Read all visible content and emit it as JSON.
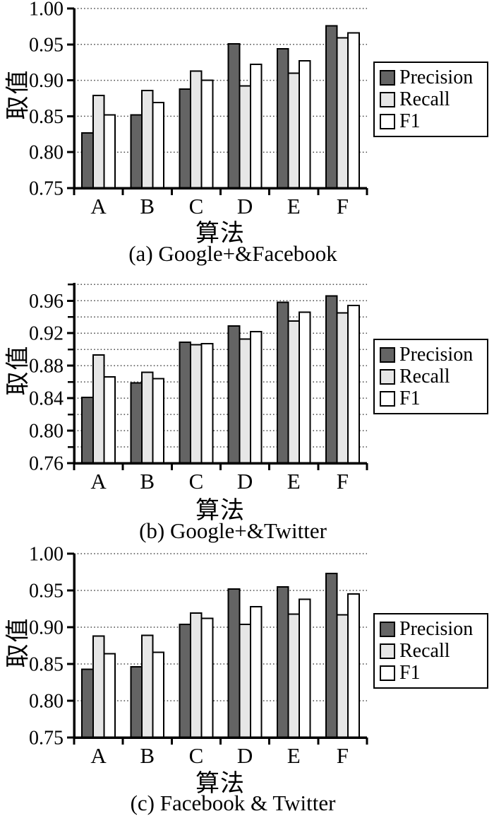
{
  "figure": {
    "background": "#ffffff",
    "series_colors": {
      "Precision": "#646464",
      "Recall": "#e6e6e6",
      "F1": "#ffffff"
    },
    "bar_border_color": "#000000",
    "gridline_color": "#4d4d4d",
    "axis_color": "#000000"
  },
  "chart_data": [
    {
      "id": "a",
      "type": "bar",
      "caption": "(a) Google+&Facebook",
      "xlabel": "算法",
      "ylabel": "取值",
      "categories": [
        "A",
        "B",
        "C",
        "D",
        "E",
        "F"
      ],
      "series": [
        {
          "name": "Precision",
          "values": [
            0.827,
            0.852,
            0.888,
            0.951,
            0.944,
            0.976
          ]
        },
        {
          "name": "Recall",
          "values": [
            0.879,
            0.886,
            0.913,
            0.892,
            0.91,
            0.959
          ]
        },
        {
          "name": "F1",
          "values": [
            0.852,
            0.869,
            0.9,
            0.922,
            0.927,
            0.966
          ]
        }
      ],
      "ylim": [
        0.75,
        1.0
      ],
      "yticks": [
        "0.75",
        "0.80",
        "0.85",
        "0.90",
        "0.95",
        "1.00"
      ],
      "gridlines": [
        0.8,
        0.85,
        0.9,
        0.95,
        1.0
      ],
      "minor_ticks": [],
      "grid": "dotted-horizontal",
      "legend": [
        "Precision",
        "Recall",
        "F1"
      ],
      "legend_position": "right"
    },
    {
      "id": "b",
      "type": "bar",
      "caption": "(b) Google+&Twitter",
      "xlabel": "算法",
      "ylabel": "取值",
      "categories": [
        "A",
        "B",
        "C",
        "D",
        "E",
        "F"
      ],
      "series": [
        {
          "name": "Precision",
          "values": [
            0.841,
            0.859,
            0.909,
            0.929,
            0.958,
            0.966
          ]
        },
        {
          "name": "Recall",
          "values": [
            0.893,
            0.872,
            0.906,
            0.913,
            0.935,
            0.945
          ]
        },
        {
          "name": "F1",
          "values": [
            0.866,
            0.864,
            0.907,
            0.922,
            0.946,
            0.954
          ]
        }
      ],
      "ylim": [
        0.76,
        0.982
      ],
      "yticks": [
        "0.76",
        "0.80",
        "0.84",
        "0.88",
        "0.92",
        "0.96"
      ],
      "gridlines": [
        0.78,
        0.8,
        0.82,
        0.84,
        0.86,
        0.88,
        0.9,
        0.92,
        0.94,
        0.96,
        0.98
      ],
      "minor_ticks": [
        0.78,
        0.82,
        0.86,
        0.9,
        0.94,
        0.98
      ],
      "grid": "dotted-horizontal",
      "legend": [
        "Precision",
        "Recall",
        "F1"
      ],
      "legend_position": "right"
    },
    {
      "id": "c",
      "type": "bar",
      "caption": "(c) Facebook & Twitter",
      "xlabel": "算法",
      "ylabel": "取值",
      "categories": [
        "A",
        "B",
        "C",
        "D",
        "E",
        "F"
      ],
      "series": [
        {
          "name": "Precision",
          "values": [
            0.843,
            0.846,
            0.904,
            0.952,
            0.955,
            0.973
          ]
        },
        {
          "name": "Recall",
          "values": [
            0.888,
            0.889,
            0.919,
            0.904,
            0.918,
            0.917
          ]
        },
        {
          "name": "F1",
          "values": [
            0.864,
            0.866,
            0.912,
            0.928,
            0.938,
            0.945
          ]
        }
      ],
      "ylim": [
        0.75,
        1.0
      ],
      "yticks": [
        "0.75",
        "0.80",
        "0.85",
        "0.90",
        "0.95",
        "1.00"
      ],
      "gridlines": [
        0.8,
        0.85,
        0.9,
        0.95,
        1.0
      ],
      "minor_ticks": [],
      "grid": "dotted-horizontal",
      "legend": [
        "Precision",
        "Recall",
        "F1"
      ],
      "legend_position": "right"
    }
  ]
}
